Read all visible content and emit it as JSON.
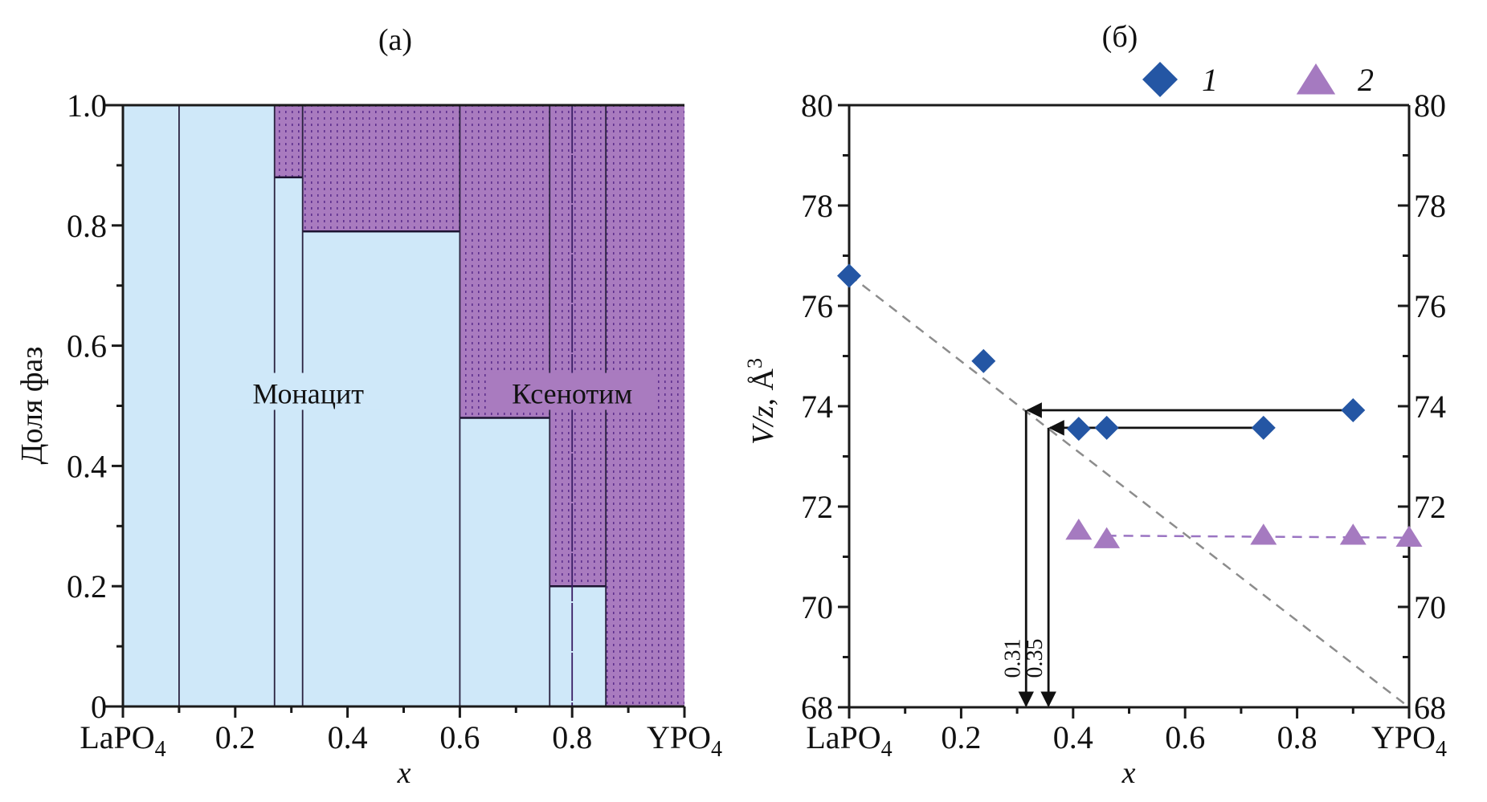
{
  "colors": {
    "monazite_fill": "#cfe8f9",
    "xenotime_fill": "#a97bbf",
    "xenotime_dots": "#5e2f8e",
    "series1": "#2456a4",
    "series2": "#a57ac0",
    "trend_line": "#8c8c8c",
    "series2_line": "#9a74c2",
    "axis": "#1a1a1a"
  },
  "chart_data": [
    {
      "id": "a",
      "type": "area",
      "title": "(a)",
      "xlabel": "x",
      "ylabel": "Доля фаз",
      "xlim": [
        0,
        1
      ],
      "ylim": [
        0,
        1
      ],
      "x_ticks": [
        0,
        0.2,
        0.4,
        0.6,
        0.8,
        1.0
      ],
      "x_tick_labels": [
        "LaPO4",
        "0.2",
        "0.4",
        "0.6",
        "0.8",
        "YPO4"
      ],
      "x_minor_ticks": [
        0.1,
        0.3,
        0.5,
        0.7,
        0.9
      ],
      "y_ticks": [
        0,
        0.2,
        0.4,
        0.6,
        0.8,
        1.0
      ],
      "y_tick_labels": [
        "0",
        "0.2",
        "0.4",
        "0.6",
        "0.8",
        "1.0"
      ],
      "y_minor_ticks": [
        0.1,
        0.3,
        0.5,
        0.7,
        0.9
      ],
      "series_names": [
        "Монацит",
        "Ксенотим"
      ],
      "segments": [
        {
          "x0": 0.0,
          "x1": 0.1,
          "monazite_fraction": 1.0
        },
        {
          "x0": 0.1,
          "x1": 0.27,
          "monazite_fraction": 1.0
        },
        {
          "x0": 0.27,
          "x1": 0.32,
          "monazite_fraction": 0.88
        },
        {
          "x0": 0.32,
          "x1": 0.6,
          "monazite_fraction": 0.79
        },
        {
          "x0": 0.6,
          "x1": 0.76,
          "monazite_fraction": 0.48
        },
        {
          "x0": 0.76,
          "x1": 0.86,
          "monazite_fraction": 0.2
        },
        {
          "x0": 0.86,
          "x1": 1.0,
          "monazite_fraction": 0.0
        }
      ],
      "extra_dividers": [
        0.8
      ],
      "annotations": [
        {
          "text": "Монацит",
          "x": 0.33,
          "y": 0.52,
          "phase": "monazite"
        },
        {
          "text": "Ксенотим",
          "x": 0.8,
          "y": 0.52,
          "phase": "xenotime"
        }
      ]
    },
    {
      "id": "b",
      "type": "scatter",
      "title": "(б)",
      "xlabel": "x",
      "ylabel": "V/z, Å3",
      "ylabel_parts": {
        "var": "V/z",
        "sep": ", ",
        "unit": "Å",
        "sup": "3"
      },
      "xlim": [
        0,
        1
      ],
      "ylim": [
        68,
        80
      ],
      "x_ticks": [
        0,
        0.2,
        0.4,
        0.6,
        0.8,
        1.0
      ],
      "x_tick_labels": [
        "LaPO4",
        "0.2",
        "0.4",
        "0.6",
        "0.8",
        "YPO4"
      ],
      "x_minor_ticks": [
        0.1,
        0.3,
        0.5,
        0.7,
        0.9
      ],
      "y_ticks": [
        68,
        70,
        72,
        74,
        76,
        78,
        80
      ],
      "y_tick_labels": [
        "68",
        "70",
        "72",
        "74",
        "76",
        "78",
        "80"
      ],
      "y_minor_ticks": [
        69,
        71,
        73,
        75,
        77,
        79
      ],
      "legend": {
        "position": "top-right",
        "entries": [
          {
            "label": "1",
            "marker": "diamond"
          },
          {
            "label": "2",
            "marker": "triangle"
          }
        ]
      },
      "series": [
        {
          "name": "1",
          "marker": "diamond",
          "x": [
            0.0,
            0.24,
            0.41,
            0.46,
            0.74,
            0.9
          ],
          "y": [
            76.6,
            74.9,
            73.55,
            73.57,
            73.57,
            73.92
          ]
        },
        {
          "name": "2",
          "marker": "triangle",
          "x": [
            0.41,
            0.46,
            0.74,
            0.9,
            1.0
          ],
          "y": [
            71.52,
            71.35,
            71.42,
            71.42,
            71.38
          ]
        }
      ],
      "lines": [
        {
          "name": "vegard-trend",
          "style": "dashed",
          "color_key": "trend_line",
          "x": [
            0.0,
            1.0
          ],
          "y": [
            76.62,
            68.0
          ]
        },
        {
          "name": "series2-level",
          "style": "dashed",
          "color_key": "series2_line",
          "x": [
            0.46,
            1.0
          ],
          "y": [
            71.42,
            71.38
          ]
        }
      ],
      "arrows": [
        {
          "from_x": 0.9,
          "y": 73.92,
          "to_x": 0.316,
          "drop_label": "0.31"
        },
        {
          "from_x": 0.74,
          "y": 73.57,
          "to_x": 0.356,
          "drop_label": "0.35"
        }
      ]
    }
  ]
}
